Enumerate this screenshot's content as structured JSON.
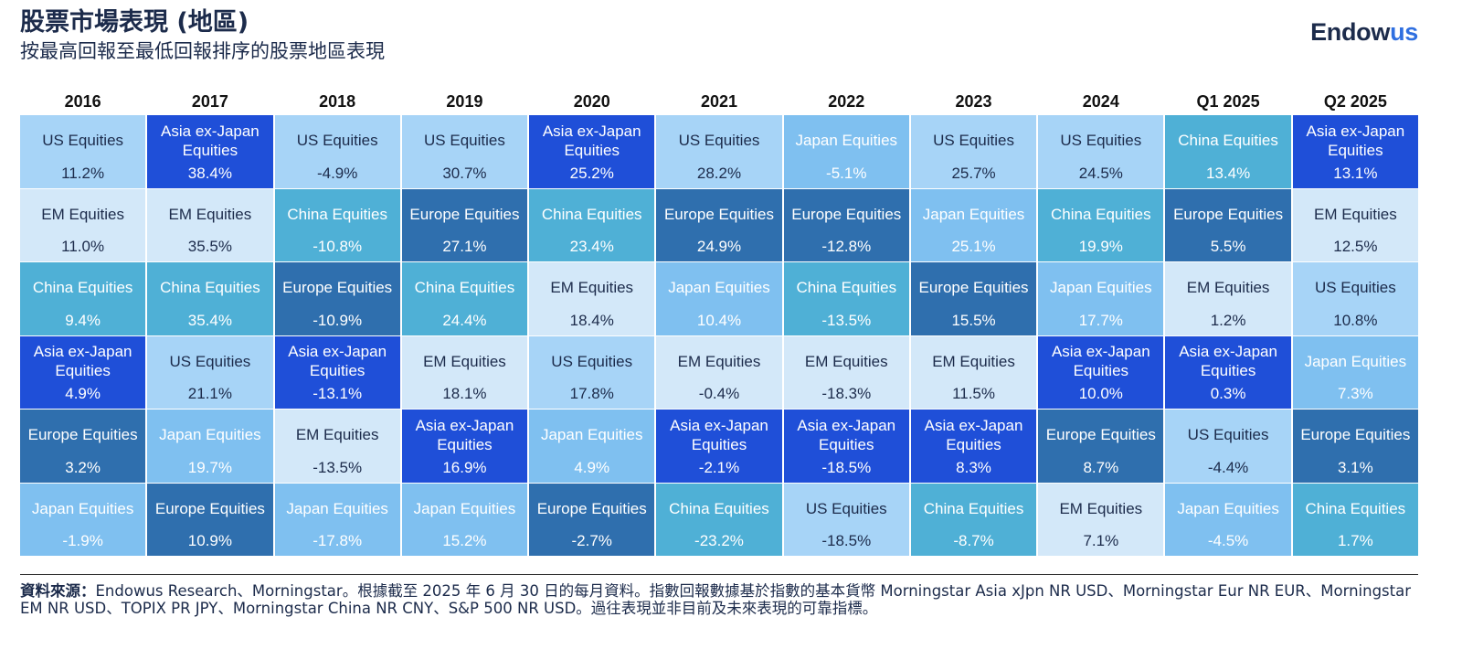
{
  "header": {
    "title": "股票市場表現 (地區)",
    "subtitle": "按最高回報至最低回報排序的股票地區表現",
    "logo_main": "Endow",
    "logo_accent": "us"
  },
  "colors": {
    "US Equities": "#a7d4f7",
    "EM Equities": "#d3e8f9",
    "China Equities": "#4fb0d6",
    "Europe Equities": "#2f6fae",
    "Japan Equities": "#7fc0f0",
    "Asia ex-Japan Equities": "#1f4fd8"
  },
  "chart_data": {
    "type": "table",
    "columns": [
      "2016",
      "2017",
      "2018",
      "2019",
      "2020",
      "2021",
      "2022",
      "2023",
      "2024",
      "Q1 2025",
      "Q2 2025"
    ],
    "rankings": [
      [
        {
          "label": "US Equities",
          "region": "US Equities",
          "value": "11.2%"
        },
        {
          "label": "EM Equities",
          "region": "EM Equities",
          "value": "11.0%"
        },
        {
          "label": "China Equities",
          "region": "China Equities",
          "value": "9.4%"
        },
        {
          "label": "Asia ex-Japan Equities",
          "region": "Asia ex-Japan Equities",
          "value": "4.9%"
        },
        {
          "label": "Europe Equities",
          "region": "Europe Equities",
          "value": "3.2%"
        },
        {
          "label": "Japan Equities",
          "region": "Japan Equities",
          "value": "-1.9%"
        }
      ],
      [
        {
          "label": "Asia ex-Japan Equities",
          "region": "Asia ex-Japan Equities",
          "value": "38.4%"
        },
        {
          "label": "EM Equities",
          "region": "EM Equities",
          "value": "35.5%"
        },
        {
          "label": "China Equities",
          "region": "China Equities",
          "value": "35.4%"
        },
        {
          "label": "US Equities",
          "region": "US Equities",
          "value": "21.1%"
        },
        {
          "label": "Japan Equities",
          "region": "Japan Equities",
          "value": "19.7%"
        },
        {
          "label": "Europe Equities",
          "region": "Europe Equities",
          "value": "10.9%"
        }
      ],
      [
        {
          "label": "US Equities",
          "region": "US Equities",
          "value": "-4.9%"
        },
        {
          "label": "China Equities",
          "region": "China Equities",
          "value": "-10.8%"
        },
        {
          "label": "Europe Equities",
          "region": "Europe Equities",
          "value": "-10.9%"
        },
        {
          "label": "Asia ex-Japan Equities",
          "region": "Asia ex-Japan Equities",
          "value": "-13.1%"
        },
        {
          "label": "EM Equities",
          "region": "EM Equities",
          "value": "-13.5%"
        },
        {
          "label": "Japan Equities",
          "region": "Japan Equities",
          "value": "-17.8%"
        }
      ],
      [
        {
          "label": "US Equities",
          "region": "US Equities",
          "value": "30.7%"
        },
        {
          "label": "Europe Equities",
          "region": "Europe Equities",
          "value": "27.1%"
        },
        {
          "label": "China Equities",
          "region": "China Equities",
          "value": "24.4%"
        },
        {
          "label": "EM Equities",
          "region": "EM Equities",
          "value": "18.1%"
        },
        {
          "label": "Asia ex-Japan Equities",
          "region": "Asia ex-Japan Equities",
          "value": "16.9%"
        },
        {
          "label": "Japan Equities",
          "region": "Japan Equities",
          "value": "15.2%"
        }
      ],
      [
        {
          "label": "Asia ex-Japan Equities",
          "region": "Asia ex-Japan Equities",
          "value": "25.2%"
        },
        {
          "label": "China Equities",
          "region": "China Equities",
          "value": "23.4%"
        },
        {
          "label": "EM Equities",
          "region": "EM Equities",
          "value": "18.4%"
        },
        {
          "label": "US Equities",
          "region": "US Equities",
          "value": "17.8%"
        },
        {
          "label": "Japan Equities",
          "region": "Japan Equities",
          "value": "4.9%"
        },
        {
          "label": "Europe Equities",
          "region": "Europe Equities",
          "value": "-2.7%"
        }
      ],
      [
        {
          "label": "US Equities",
          "region": "US Equities",
          "value": "28.2%"
        },
        {
          "label": "Europe Equities",
          "region": "Europe Equities",
          "value": "24.9%"
        },
        {
          "label": "Japan Equities",
          "region": "Japan Equities",
          "value": "10.4%"
        },
        {
          "label": "EM Equities",
          "region": "EM Equities",
          "value": "-0.4%"
        },
        {
          "label": "Asia ex-Japan Equities",
          "region": "Asia ex-Japan Equities",
          "value": "-2.1%"
        },
        {
          "label": "China Equities",
          "region": "China Equities",
          "value": "-23.2%"
        }
      ],
      [
        {
          "label": "Japan Equities",
          "region": "Japan Equities",
          "value": "-5.1%"
        },
        {
          "label": "Europe Equities",
          "region": "Europe Equities",
          "value": "-12.8%"
        },
        {
          "label": "China Equities",
          "region": "China Equities",
          "value": "-13.5%"
        },
        {
          "label": "EM Equities",
          "region": "EM Equities",
          "value": "-18.3%"
        },
        {
          "label": "Asia ex-Japan Equities",
          "region": "Asia ex-Japan Equities",
          "value": "-18.5%"
        },
        {
          "label": "US Equities",
          "region": "US Equities",
          "value": "-18.5%"
        }
      ],
      [
        {
          "label": "US Equities",
          "region": "US Equities",
          "value": "25.7%"
        },
        {
          "label": "Japan Equities",
          "region": "Japan Equities",
          "value": "25.1%"
        },
        {
          "label": "Europe Equities",
          "region": "Europe Equities",
          "value": "15.5%"
        },
        {
          "label": "EM Equities",
          "region": "EM Equities",
          "value": "11.5%"
        },
        {
          "label": "Asia ex-Japan Equities",
          "region": "Asia ex-Japan Equities",
          "value": "8.3%"
        },
        {
          "label": "China Equities",
          "region": "China Equities",
          "value": "-8.7%"
        }
      ],
      [
        {
          "label": "US Equities",
          "region": "US Equities",
          "value": "24.5%"
        },
        {
          "label": "China Equities",
          "region": "China Equities",
          "value": "19.9%"
        },
        {
          "label": "Japan Equities",
          "region": "Japan Equities",
          "value": "17.7%"
        },
        {
          "label": "Asia ex-Japan Equities",
          "region": "Asia ex-Japan Equities",
          "value": "10.0%"
        },
        {
          "label": "Europe Equities",
          "region": "Europe Equities",
          "value": "8.7%"
        },
        {
          "label": "EM Equities",
          "region": "EM Equities",
          "value": "7.1%"
        }
      ],
      [
        {
          "label": "China Equities",
          "region": "China Equities",
          "value": "13.4%"
        },
        {
          "label": "Europe Equities",
          "region": "Europe Equities",
          "value": "5.5%"
        },
        {
          "label": "EM Equities",
          "region": "EM Equities",
          "value": "1.2%"
        },
        {
          "label": "Asia ex-Japan Equities",
          "region": "Asia ex-Japan Equities",
          "value": "0.3%"
        },
        {
          "label": "US Equities",
          "region": "US Equities",
          "value": "-4.4%"
        },
        {
          "label": "Japan Equities",
          "region": "Japan Equities",
          "value": "-4.5%"
        }
      ],
      [
        {
          "label": "Asia ex-Japan Equities",
          "region": "Asia ex-Japan Equities",
          "value": "13.1%"
        },
        {
          "label": "EM Equities",
          "region": "EM Equities",
          "value": "12.5%"
        },
        {
          "label": "US Equities",
          "region": "US Equities",
          "value": "10.8%"
        },
        {
          "label": "Japan Equities",
          "region": "Japan Equities",
          "value": "7.3%"
        },
        {
          "label": "Europe Equities",
          "region": "Europe Equities",
          "value": "3.1%"
        },
        {
          "label": "China Equities",
          "region": "China Equities",
          "value": "1.7%"
        }
      ]
    ]
  },
  "footer": {
    "source_label": "資料來源：",
    "source_text": "Endowus Research、Morningstar。根據截至 2025 年 6 月 30 日的每月資料。指數回報數據基於指數的基本貨幣 Morningstar Asia xJpn NR USD、Morningstar Eur NR EUR、Morningstar EM NR USD、TOPIX PR JPY、Morningstar China NR CNY、S&P 500 NR USD。過往表現並非目前及未來表現的可靠指標。"
  }
}
